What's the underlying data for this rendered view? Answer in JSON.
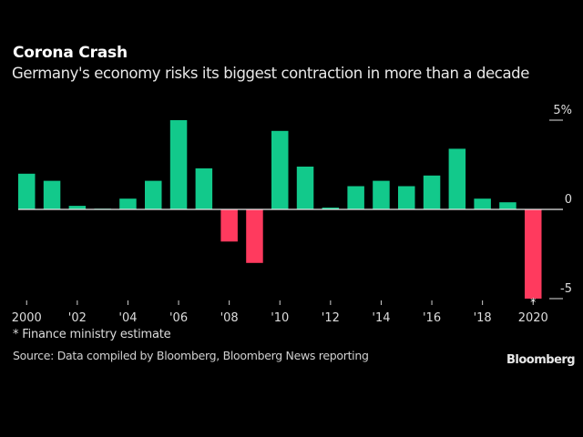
{
  "header": {
    "title": "Corona Crash",
    "subtitle": "Germany's economy risks its biggest contraction in more than a decade"
  },
  "colors": {
    "positive": "#12c98b",
    "negative": "#ff3a5e",
    "background": "#000000",
    "axis": "#e0e0e0"
  },
  "chart_data": {
    "type": "bar",
    "title": "Corona Crash",
    "subtitle": "Germany's economy risks its biggest contraction in more than a decade",
    "xlabel": "",
    "ylabel": "",
    "categories": [
      "2000",
      "2001",
      "2002",
      "2003",
      "2004",
      "2005",
      "2006",
      "2007",
      "2008",
      "2009",
      "2010",
      "2011",
      "2012",
      "2013",
      "2014",
      "2015",
      "2016",
      "2017",
      "2018",
      "2019",
      "2020"
    ],
    "values": [
      2.0,
      1.6,
      0.2,
      0.0,
      0.6,
      1.6,
      5.0,
      2.3,
      -1.8,
      -3.0,
      4.4,
      2.4,
      0.1,
      1.3,
      1.6,
      1.3,
      1.9,
      3.4,
      0.6,
      0.4,
      -5.0
    ],
    "estimate_flags": [
      "2020"
    ],
    "ylim": [
      -5,
      5
    ],
    "yticks": [
      {
        "value": 5,
        "label": "5%"
      },
      {
        "value": 0,
        "label": "0"
      },
      {
        "value": -5,
        "label": "-5"
      }
    ],
    "xticks": [
      {
        "year": "2000",
        "label": "2000"
      },
      {
        "year": "2002",
        "label": "'02"
      },
      {
        "year": "2004",
        "label": "'04"
      },
      {
        "year": "2006",
        "label": "'06"
      },
      {
        "year": "2008",
        "label": "'08"
      },
      {
        "year": "2010",
        "label": "'10"
      },
      {
        "year": "2012",
        "label": "'12"
      },
      {
        "year": "2014",
        "label": "'14"
      },
      {
        "year": "2016",
        "label": "'16"
      },
      {
        "year": "2018",
        "label": "'18"
      },
      {
        "year": "2020",
        "label": "2020"
      }
    ],
    "yaxis_position": "right",
    "grid": false,
    "legend": "none"
  },
  "footer": {
    "footnote": "* Finance ministry estimate",
    "source": "Source: Data compiled by Bloomberg, Bloomberg News reporting",
    "logo": "Bloomberg"
  }
}
